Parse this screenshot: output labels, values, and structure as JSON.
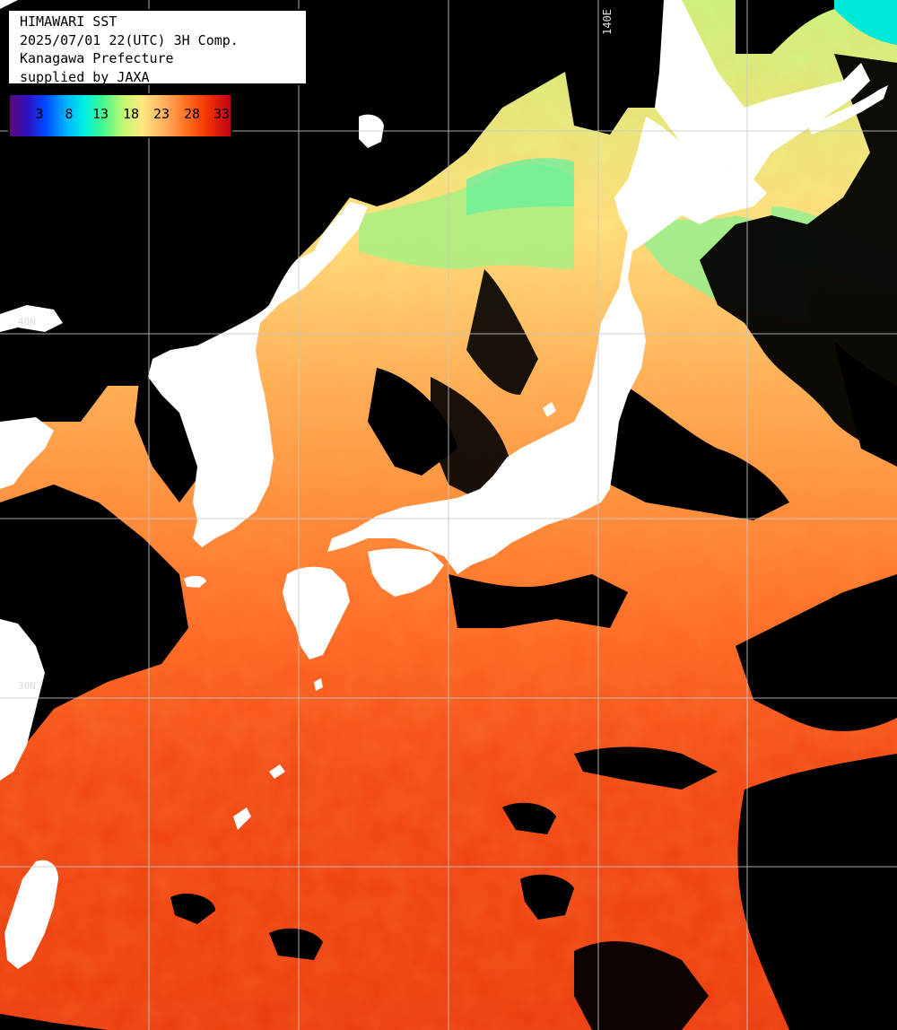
{
  "header": {
    "line1": "HIMAWARI SST",
    "line2": "2025/07/01 22(UTC) 3H Comp.",
    "line3": "Kanagawa Prefecture",
    "line4": "supplied by JAXA"
  },
  "legend": {
    "ticks": [
      "3",
      "8",
      "13",
      "18",
      "23",
      "28",
      "33"
    ]
  },
  "grid_labels": {
    "lon_140": "140E",
    "lat_40": "40N",
    "lat_30": "30N"
  },
  "colors": {
    "land": "#ffffff",
    "cloud": "#000000",
    "gridline": "#c8c8c8",
    "warm_sea": "#f04010",
    "mid_sea": "#ff9a40",
    "cool_sea": "#ffe080",
    "cold_sea": "#60f090"
  }
}
